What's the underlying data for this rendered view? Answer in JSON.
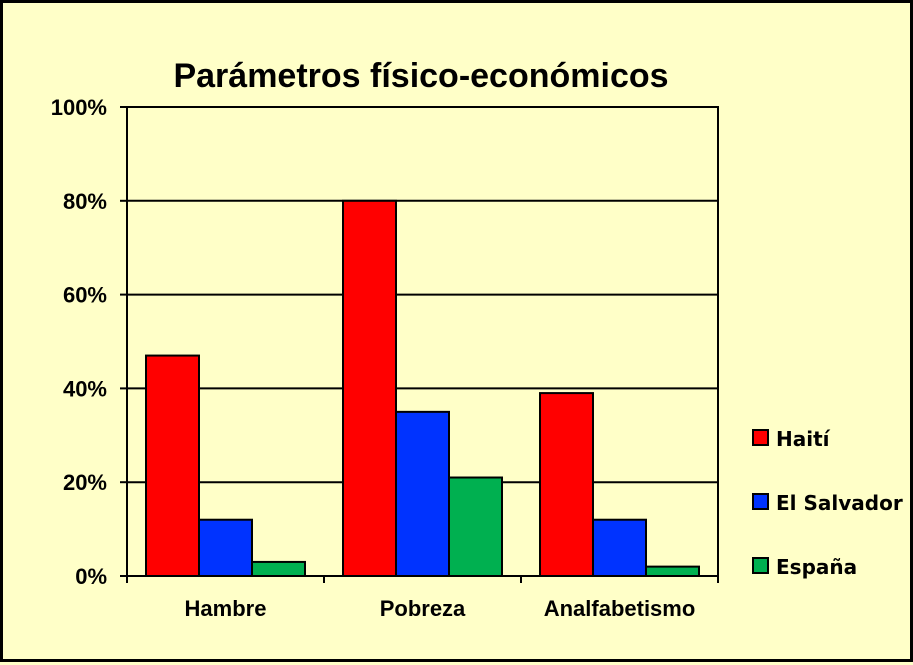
{
  "chart_data": {
    "type": "bar",
    "title": "Parámetros físico-económicos",
    "xlabel": "",
    "ylabel": "",
    "categories": [
      "Hambre",
      "Pobreza",
      "Analfabetismo"
    ],
    "series": [
      {
        "name": "Haití",
        "color": "#ff0000",
        "values": [
          47,
          80,
          39
        ]
      },
      {
        "name": "El Salvador",
        "color": "#0033ff",
        "values": [
          12,
          35,
          12
        ]
      },
      {
        "name": "España",
        "color": "#00b050",
        "values": [
          3,
          21,
          2
        ]
      }
    ],
    "ylim": [
      0,
      100
    ],
    "yticks": [
      "0%",
      "20%",
      "40%",
      "60%",
      "80%",
      "100%"
    ],
    "grid": true,
    "legend_position": "right",
    "background_color": "#ffffc8"
  }
}
